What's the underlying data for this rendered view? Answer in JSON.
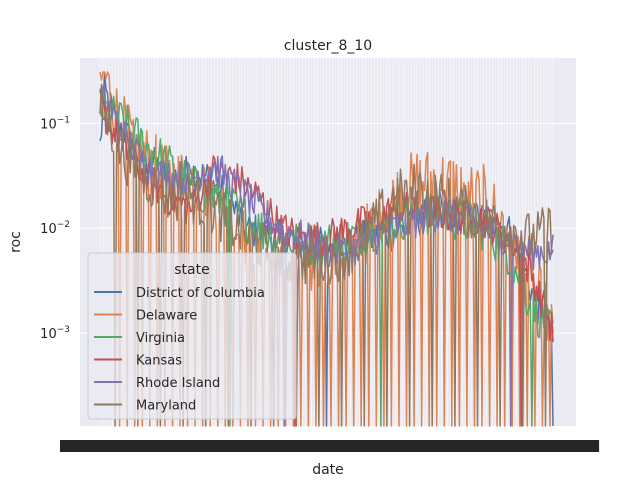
{
  "chart_data": {
    "type": "line",
    "title": "cluster_8_10",
    "xlabel": "date",
    "ylabel": "roc",
    "y_scale": "log",
    "ylim": [
      0.00013,
      0.42
    ],
    "y_ticks": [
      {
        "value": 0.1,
        "base": "10",
        "exp": "−1"
      },
      {
        "value": 0.01,
        "base": "10",
        "exp": "−2"
      },
      {
        "value": 0.001,
        "base": "10",
        "exp": "−3"
      }
    ],
    "x_ticks_note": "dense overlapping date tick labels (unreadable)",
    "grid": true,
    "legend": {
      "title": "state",
      "placement": "lower-left"
    },
    "series": [
      {
        "name": "District of Columbia",
        "color": "#4c72b0",
        "anchors": [
          [
            0,
            0.06
          ],
          [
            0.01,
            0.2
          ],
          [
            0.03,
            0.12
          ],
          [
            0.05,
            0.09
          ],
          [
            0.08,
            0.05
          ],
          [
            0.12,
            0.04
          ],
          [
            0.16,
            0.03
          ],
          [
            0.2,
            0.035
          ],
          [
            0.24,
            0.03
          ],
          [
            0.28,
            0.02
          ],
          [
            0.32,
            0.01
          ],
          [
            0.36,
            0.009
          ],
          [
            0.4,
            0.008
          ],
          [
            0.45,
            0.007
          ],
          [
            0.5,
            0.007
          ],
          [
            0.55,
            0.008
          ],
          [
            0.6,
            0.008
          ],
          [
            0.65,
            0.009
          ],
          [
            0.7,
            0.012
          ],
          [
            0.75,
            0.015
          ],
          [
            0.8,
            0.014
          ],
          [
            0.85,
            0.012
          ],
          [
            0.9,
            0.01
          ],
          [
            0.93,
            0.005
          ],
          [
            0.96,
            0.002
          ],
          [
            1,
            0.001
          ]
        ],
        "noise": 0.35,
        "dips": 2
      },
      {
        "name": "Delaware",
        "color": "#dd8452",
        "anchors": [
          [
            0,
            0.25
          ],
          [
            0.01,
            0.3
          ],
          [
            0.03,
            0.15
          ],
          [
            0.06,
            0.08
          ],
          [
            0.1,
            0.05
          ],
          [
            0.15,
            0.03
          ],
          [
            0.2,
            0.03
          ],
          [
            0.25,
            0.02
          ],
          [
            0.3,
            0.01
          ],
          [
            0.35,
            0.006
          ],
          [
            0.4,
            0.004
          ],
          [
            0.45,
            0.004
          ],
          [
            0.5,
            0.005
          ],
          [
            0.55,
            0.006
          ],
          [
            0.6,
            0.01
          ],
          [
            0.65,
            0.02
          ],
          [
            0.7,
            0.03
          ],
          [
            0.75,
            0.03
          ],
          [
            0.8,
            0.025
          ],
          [
            0.85,
            0.02
          ],
          [
            0.9,
            0.01
          ],
          [
            0.95,
            0.004
          ],
          [
            1,
            0.001
          ]
        ],
        "noise": 0.6,
        "dips": 60
      },
      {
        "name": "Virginia",
        "color": "#55a868",
        "anchors": [
          [
            0,
            0.15
          ],
          [
            0.02,
            0.12
          ],
          [
            0.05,
            0.1
          ],
          [
            0.1,
            0.06
          ],
          [
            0.15,
            0.04
          ],
          [
            0.2,
            0.025
          ],
          [
            0.25,
            0.02
          ],
          [
            0.3,
            0.015
          ],
          [
            0.35,
            0.01
          ],
          [
            0.4,
            0.008
          ],
          [
            0.45,
            0.007
          ],
          [
            0.5,
            0.007
          ],
          [
            0.55,
            0.008
          ],
          [
            0.6,
            0.01
          ],
          [
            0.65,
            0.012
          ],
          [
            0.7,
            0.014
          ],
          [
            0.75,
            0.014
          ],
          [
            0.8,
            0.012
          ],
          [
            0.85,
            0.01
          ],
          [
            0.9,
            0.006
          ],
          [
            0.95,
            0.002
          ],
          [
            1,
            0.0009
          ]
        ],
        "noise": 0.45,
        "dips": 3
      },
      {
        "name": "Kansas",
        "color": "#c44e52",
        "anchors": [
          [
            0,
            0.15
          ],
          [
            0.02,
            0.1
          ],
          [
            0.05,
            0.06
          ],
          [
            0.1,
            0.03
          ],
          [
            0.15,
            0.02
          ],
          [
            0.2,
            0.015
          ],
          [
            0.25,
            0.035
          ],
          [
            0.3,
            0.03
          ],
          [
            0.35,
            0.02
          ],
          [
            0.4,
            0.01
          ],
          [
            0.45,
            0.008
          ],
          [
            0.5,
            0.008
          ],
          [
            0.55,
            0.01
          ],
          [
            0.6,
            0.012
          ],
          [
            0.65,
            0.015
          ],
          [
            0.7,
            0.015
          ],
          [
            0.75,
            0.014
          ],
          [
            0.8,
            0.013
          ],
          [
            0.85,
            0.012
          ],
          [
            0.9,
            0.008
          ],
          [
            0.95,
            0.004
          ],
          [
            1,
            0.001
          ]
        ],
        "noise": 0.35,
        "dips": 2
      },
      {
        "name": "Rhode Island",
        "color": "#8172b3",
        "anchors": [
          [
            0,
            0.18
          ],
          [
            0.02,
            0.15
          ],
          [
            0.05,
            0.08
          ],
          [
            0.1,
            0.04
          ],
          [
            0.15,
            0.03
          ],
          [
            0.2,
            0.03
          ],
          [
            0.25,
            0.04
          ],
          [
            0.3,
            0.025
          ],
          [
            0.35,
            0.015
          ],
          [
            0.4,
            0.01
          ],
          [
            0.45,
            0.008
          ],
          [
            0.5,
            0.006
          ],
          [
            0.55,
            0.006
          ],
          [
            0.6,
            0.008
          ],
          [
            0.65,
            0.01
          ],
          [
            0.7,
            0.012
          ],
          [
            0.75,
            0.014
          ],
          [
            0.8,
            0.012
          ],
          [
            0.85,
            0.01
          ],
          [
            0.9,
            0.008
          ],
          [
            0.95,
            0.006
          ],
          [
            1,
            0.006
          ]
        ],
        "noise": 0.35,
        "dips": 2
      },
      {
        "name": "Maryland",
        "color": "#937860",
        "anchors": [
          [
            0,
            0.15
          ],
          [
            0.02,
            0.1
          ],
          [
            0.05,
            0.05
          ],
          [
            0.1,
            0.03
          ],
          [
            0.15,
            0.02
          ],
          [
            0.2,
            0.02
          ],
          [
            0.25,
            0.015
          ],
          [
            0.3,
            0.01
          ],
          [
            0.35,
            0.007
          ],
          [
            0.4,
            0.005
          ],
          [
            0.45,
            0.005
          ],
          [
            0.5,
            0.005
          ],
          [
            0.55,
            0.006
          ],
          [
            0.6,
            0.01
          ],
          [
            0.65,
            0.02
          ],
          [
            0.7,
            0.025
          ],
          [
            0.75,
            0.02
          ],
          [
            0.8,
            0.015
          ],
          [
            0.85,
            0.012
          ],
          [
            0.9,
            0.01
          ],
          [
            0.95,
            0.008
          ],
          [
            1,
            0.01
          ]
        ],
        "noise": 0.5,
        "dips": 20
      }
    ]
  }
}
